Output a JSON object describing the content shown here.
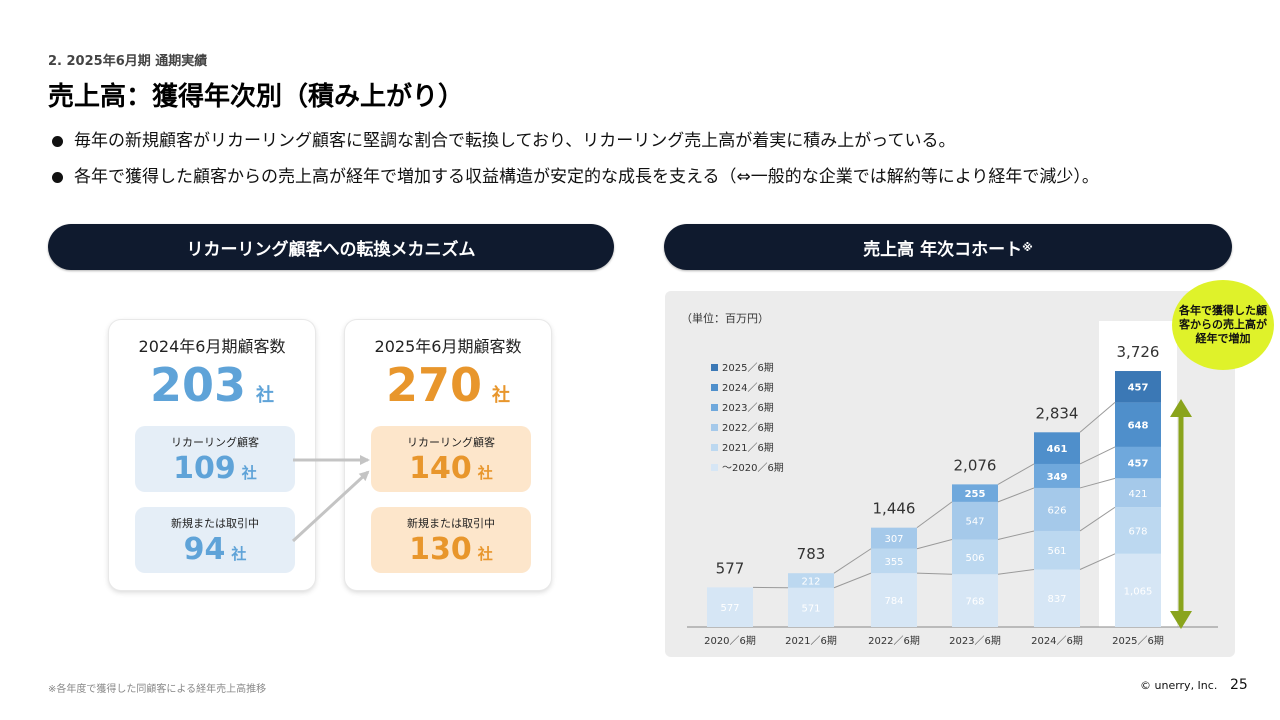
{
  "header": {
    "section": "2. 2025年6月期 通期実績",
    "title": "売上高：獲得年次別（積み上がり）"
  },
  "bullets": [
    "毎年の新規顧客がリカーリング顧客に堅調な割合で転換しており、リカーリング売上高が着実に積み上がっている。",
    "各年で獲得した顧客からの売上高が経年で増加する収益構造が安定的な成長を支える（⇔一般的な企業では解約等により経年で減少）。"
  ],
  "left_panel": {
    "title": "リカーリング顧客への転換メカニズム",
    "card_2024": {
      "heading": "2024年6月期顧客数",
      "total": "203",
      "unit": "社",
      "recurring_label": "リカーリング顧客",
      "recurring_value": "109",
      "new_label": "新規または取引中",
      "new_value": "94"
    },
    "card_2025": {
      "heading": "2025年6月期顧客数",
      "total": "270",
      "unit": "社",
      "recurring_label": "リカーリング顧客",
      "recurring_value": "140",
      "new_label": "新規または取引中",
      "new_value": "130"
    }
  },
  "right_panel": {
    "title": "売上高 年次コホート",
    "title_mark": "※",
    "unit_note": "（単位：百万円）",
    "callout": "各年で獲得した顧客からの売上高が経年で増加"
  },
  "chart_data": {
    "type": "bar",
    "stacked": true,
    "categories": [
      "2020／6期",
      "2021／6期",
      "2022／6期",
      "2023／6期",
      "2024／6期",
      "2025／6期"
    ],
    "totals": [
      577,
      783,
      1446,
      2076,
      2834,
      3726
    ],
    "total_labels": [
      "577",
      "783",
      "1,446",
      "2,076",
      "2,834",
      "3,726"
    ],
    "series": [
      {
        "name": "～2020／6期",
        "color": "#d6e6f5",
        "values": [
          577,
          571,
          784,
          768,
          837,
          1065
        ],
        "labels": [
          "577",
          "571",
          "784",
          "768",
          "837",
          "1,065"
        ]
      },
      {
        "name": "2021／6期",
        "color": "#bcd8f0",
        "values": [
          null,
          212,
          355,
          506,
          561,
          678
        ],
        "labels": [
          "",
          "212",
          "355",
          "506",
          "561",
          "678"
        ]
      },
      {
        "name": "2022／6期",
        "color": "#a5c9ea",
        "values": [
          null,
          null,
          307,
          547,
          626,
          421
        ],
        "labels": [
          "",
          "",
          "307",
          "547",
          "626",
          "421"
        ]
      },
      {
        "name": "2023／6期",
        "color": "#6fa8dc",
        "values": [
          null,
          null,
          null,
          255,
          349,
          457
        ],
        "labels": [
          "",
          "",
          "",
          "255",
          "349",
          "457"
        ]
      },
      {
        "name": "2024／6期",
        "color": "#4f8fcb",
        "values": [
          null,
          null,
          null,
          null,
          461,
          648
        ],
        "labels": [
          "",
          "",
          "",
          "",
          "461",
          "648"
        ]
      },
      {
        "name": "2025／6期",
        "color": "#3b78b5",
        "values": [
          null,
          null,
          null,
          null,
          null,
          457
        ],
        "labels": [
          "",
          "",
          "",
          "",
          "",
          "457"
        ]
      }
    ],
    "legend_position": "top-left",
    "grid": false
  },
  "footer": {
    "footnote": "※各年度で獲得した同顧客による経年売上高推移",
    "copyright": "© unerry, Inc.",
    "page_number": "25"
  },
  "colors": {
    "navy": "#0f1a2e",
    "accent_blue": "#5fa3d8",
    "accent_orange": "#e8962c",
    "arrow_green": "#8aa41c",
    "callout_yellow": "#dff22a"
  }
}
